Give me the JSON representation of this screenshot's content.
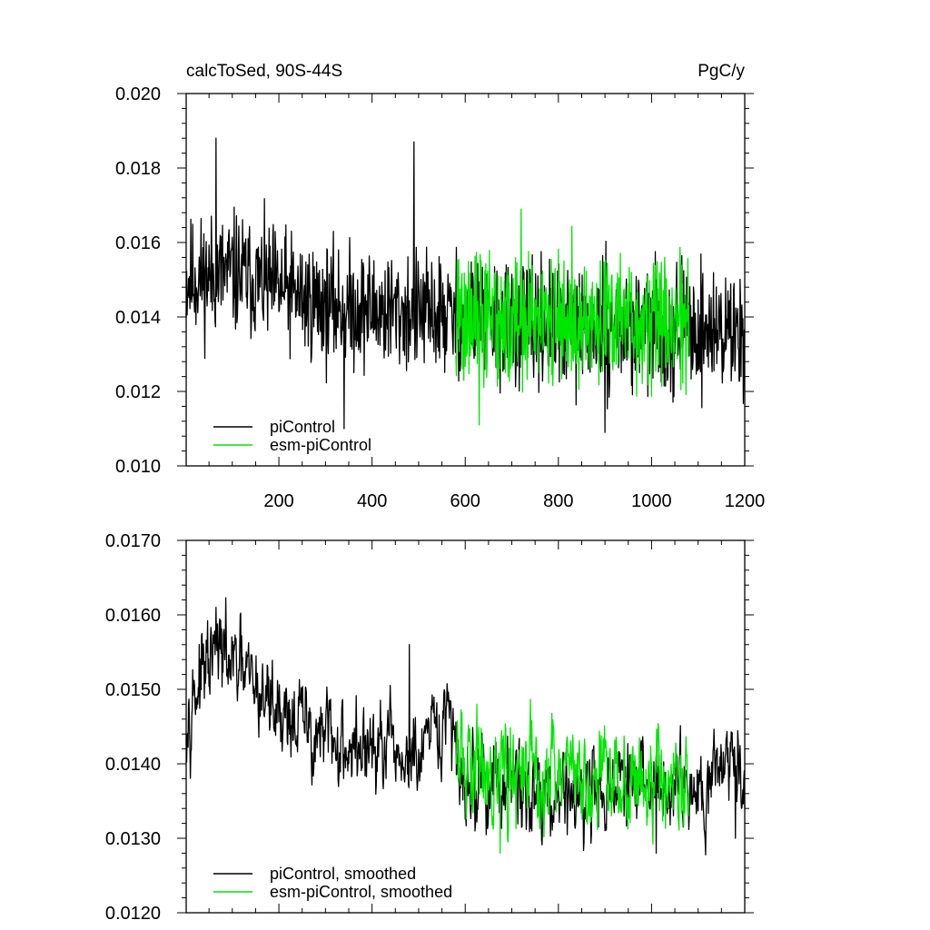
{
  "colors": {
    "piControl": "#000000",
    "esm_piControl": "#00e600",
    "frame": "#000000"
  },
  "chart_data": [
    {
      "type": "line",
      "title": "calcToSed, 90S-44S",
      "units": "PgC/y",
      "xlabel": "",
      "ylabel": "",
      "xlim": [
        1,
        1200
      ],
      "ylim": [
        0.01,
        0.02
      ],
      "xticks": [
        200,
        400,
        600,
        800,
        1000,
        1200
      ],
      "xtick_labels": [
        "200",
        "400",
        "600",
        "800",
        "1000",
        "1200"
      ],
      "yticks": [
        0.01,
        0.012,
        0.014,
        0.016,
        0.018,
        0.02
      ],
      "ytick_labels": [
        "0.010",
        "0.012",
        "0.014",
        "0.016",
        "0.018",
        "0.020"
      ],
      "legend_position": "bottom-left",
      "series": [
        {
          "name": "piControl",
          "color": "#000000",
          "x_range": [
            1,
            1200
          ],
          "trend": [
            [
              1,
              0.015
            ],
            [
              100,
              0.0152
            ],
            [
              300,
              0.0143
            ],
            [
              500,
              0.0141
            ],
            [
              580,
              0.014
            ],
            [
              800,
              0.0137
            ],
            [
              1000,
              0.0137
            ],
            [
              1200,
              0.0136
            ]
          ],
          "noise": 0.0008,
          "spikes": [
            [
              65,
              0.0188
            ],
            [
              490,
              0.0187
            ],
            [
              340,
              0.011
            ],
            [
              900,
              0.0109
            ]
          ]
        },
        {
          "name": "esm-piControl",
          "color": "#00e600",
          "x_range": [
            580,
            1080
          ],
          "trend": [
            [
              580,
              0.014
            ],
            [
              700,
              0.0138
            ],
            [
              900,
              0.0139
            ],
            [
              1080,
              0.0138
            ]
          ],
          "noise": 0.0009,
          "spikes": [
            [
              630,
              0.0111
            ],
            [
              720,
              0.0169
            ]
          ]
        }
      ]
    },
    {
      "type": "line",
      "title": "",
      "xlabel": "",
      "ylabel": "",
      "xlim": [
        1,
        1200
      ],
      "ylim": [
        0.012,
        0.017
      ],
      "xticks": [
        200,
        400,
        600,
        800,
        1000,
        1200
      ],
      "yticks": [
        0.012,
        0.013,
        0.014,
        0.015,
        0.016,
        0.017
      ],
      "ytick_labels": [
        "0.0120",
        "0.0130",
        "0.0140",
        "0.0150",
        "0.0160",
        "0.0170"
      ],
      "legend_position": "bottom-left",
      "series": [
        {
          "name": "piControl, smoothed",
          "color": "#000000",
          "x_range": [
            1,
            1200
          ],
          "trend": [
            [
              1,
              0.0148
            ],
            [
              70,
              0.0155
            ],
            [
              150,
              0.015
            ],
            [
              300,
              0.0143
            ],
            [
              450,
              0.0141
            ],
            [
              500,
              0.014
            ],
            [
              560,
              0.0146
            ],
            [
              600,
              0.0138
            ],
            [
              800,
              0.0136
            ],
            [
              1000,
              0.0137
            ],
            [
              1120,
              0.0138
            ],
            [
              1180,
              0.0142
            ],
            [
              1200,
              0.0136
            ]
          ],
          "noise": 0.00035,
          "spikes": [
            [
              65,
              0.0161
            ],
            [
              480,
              0.0156
            ],
            [
              1010,
              0.0128
            ],
            [
              1180,
              0.013
            ]
          ]
        },
        {
          "name": "esm-piControl, smoothed",
          "color": "#00e600",
          "x_range": [
            580,
            1080
          ],
          "trend": [
            [
              580,
              0.014
            ],
            [
              700,
              0.0139
            ],
            [
              800,
              0.0138
            ],
            [
              1000,
              0.0138
            ],
            [
              1080,
              0.0137
            ]
          ],
          "noise": 0.0004,
          "spikes": [
            [
              675,
              0.0128
            ],
            [
              625,
              0.0148
            ]
          ]
        }
      ]
    }
  ]
}
